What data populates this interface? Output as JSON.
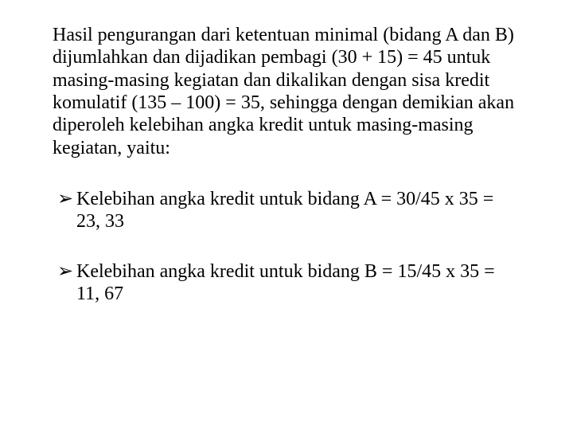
{
  "paragraph": "Hasil pengurangan dari ketentuan minimal (bidang A dan B) dijumlahkan dan dijadikan pembagi (30 + 15) = 45 untuk masing-masing kegiatan dan dikalikan dengan sisa kredit komulatif (135 – 100) = 35, sehingga dengan demikian akan diperoleh kelebihan angka kredit untuk masing-masing kegiatan, yaitu:",
  "bullets": [
    {
      "marker": "➢",
      "text": "Kelebihan angka kredit untuk bidang A = 30/45 x 35 = 23, 33"
    },
    {
      "marker": "➢",
      "text": "Kelebihan angka kredit untuk bidang B = 15/45 x 35 = 11, 67"
    }
  ],
  "colors": {
    "text": "#000000",
    "background": "#ffffff"
  },
  "typography": {
    "font_family": "Times New Roman",
    "body_fontsize_pt": 18,
    "line_height": 1.18
  }
}
